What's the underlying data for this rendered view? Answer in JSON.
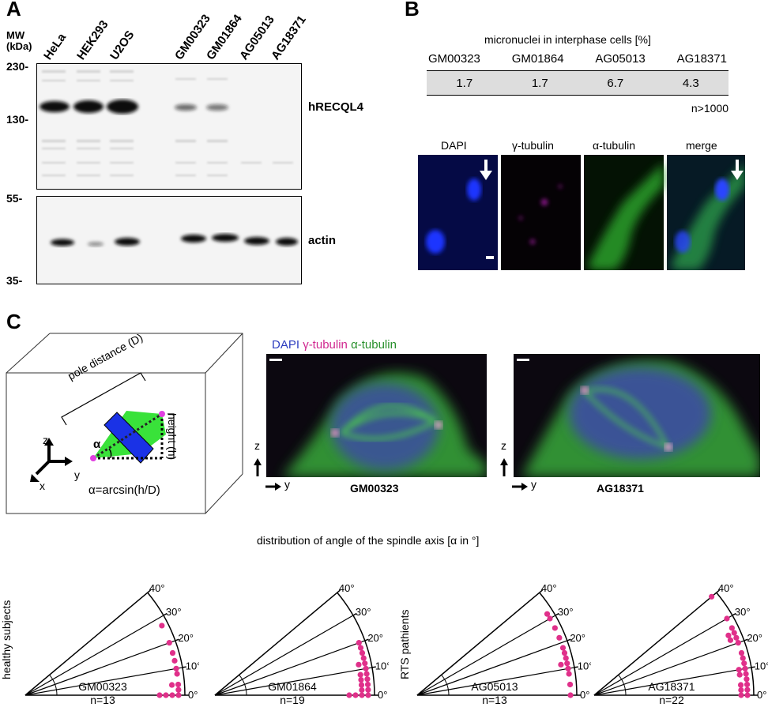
{
  "panels": {
    "A": "A",
    "B": "B",
    "C": "C"
  },
  "blot": {
    "mw_title": "MW\n(kDa)",
    "mw_marks": [
      "230-",
      "130-",
      "55-",
      "35-"
    ],
    "lanes": [
      "HeLa",
      "HEK293",
      "U2OS",
      "GM00323",
      "GM01864",
      "AG05013",
      "AG18371"
    ],
    "label_top": "hRECQL4",
    "label_bottom": "actin"
  },
  "micronuclei": {
    "title": "micronuclei in interphase cells [%]",
    "headers": [
      "GM00323",
      "GM01864",
      "AG05013",
      "AG18371"
    ],
    "values": [
      "1.7",
      "1.7",
      "6.7",
      "4.3"
    ],
    "n": "n>1000"
  },
  "fluor_b": {
    "labels": [
      "DAPI",
      "γ-tubulin",
      "α-tubulin",
      "merge"
    ]
  },
  "panel_c": {
    "diagram": {
      "pole_distance": "pole distance (D)",
      "height": "height (h)",
      "alpha": "α",
      "formula": "α=arcsin(h/D)",
      "axis_z": "z",
      "axis_y": "y",
      "axis_x": "x"
    },
    "stain_legend": {
      "dapi": "DAPI",
      "gamma": "γ-tubulin",
      "alpha": "α-tubulin"
    },
    "images": [
      {
        "label": "GM00323"
      },
      {
        "label": "AG18371"
      }
    ],
    "img_axis_z": "z",
    "img_axis_y": "y"
  },
  "distribution": {
    "title": "distribution of angle of the spindle axis [α in °]",
    "group_left": "healthy subjects",
    "group_right": "RTS pathients",
    "tick_labels": [
      "0°",
      "10°",
      "20°",
      "30°",
      "40°"
    ]
  },
  "chart_data": [
    {
      "type": "scatter",
      "name": "GM00323",
      "n_label": "n=13",
      "coordinates": "polar",
      "axis": "angle (°)",
      "range": [
        0,
        40
      ],
      "values": [
        0,
        0,
        0,
        0,
        2,
        4,
        4,
        8,
        10,
        13,
        16,
        20,
        27
      ]
    },
    {
      "type": "scatter",
      "name": "GM01864",
      "n_label": "n=19",
      "coordinates": "polar",
      "axis": "angle (°)",
      "range": [
        0,
        40
      ],
      "values": [
        0,
        0,
        0,
        0,
        2,
        2,
        4,
        4,
        6,
        6,
        8,
        8,
        10,
        12,
        12,
        14,
        16,
        18,
        20
      ]
    },
    {
      "type": "scatter",
      "name": "AG05013",
      "n_label": "n=13",
      "coordinates": "polar",
      "axis": "angle (°)",
      "range": [
        0,
        40
      ],
      "values": [
        0,
        4,
        8,
        10,
        12,
        12,
        14,
        16,
        18,
        22,
        26,
        30,
        32
      ]
    },
    {
      "type": "scatter",
      "name": "AG18371",
      "n_label": "n=22",
      "coordinates": "polar",
      "axis": "angle (°)",
      "range": [
        0,
        40
      ],
      "values": [
        0,
        0,
        2,
        2,
        4,
        4,
        6,
        8,
        8,
        10,
        10,
        12,
        14,
        16,
        20,
        22,
        22,
        24,
        24,
        26,
        30,
        40
      ]
    }
  ]
}
